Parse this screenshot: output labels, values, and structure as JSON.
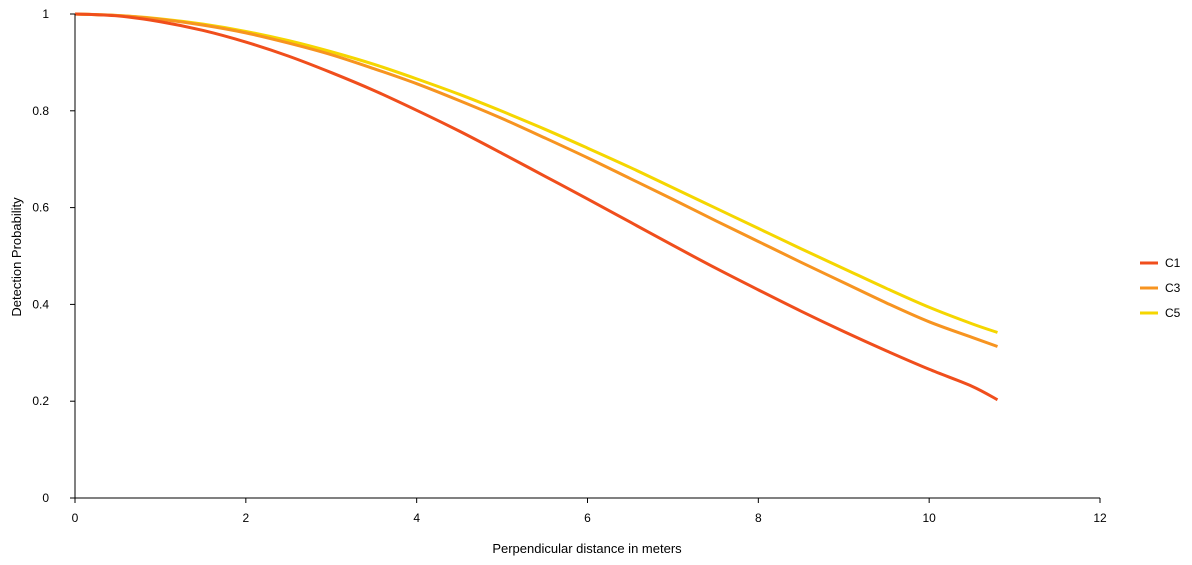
{
  "chart_data": {
    "type": "line",
    "title": "",
    "xlabel": "Perpendicular distance in meters",
    "ylabel": "Detection Probability",
    "xlim": [
      0,
      12
    ],
    "ylim": [
      0,
      1
    ],
    "x_ticks": [
      0,
      2,
      4,
      6,
      8,
      10,
      12
    ],
    "y_ticks": [
      0,
      0.2,
      0.4,
      0.6,
      0.8,
      1
    ],
    "x_tick_labels": [
      "0",
      "2",
      "4",
      "6",
      "8",
      "10",
      "12"
    ],
    "y_tick_labels": [
      "0",
      "0.2",
      "0.4",
      "0.6",
      "0.8",
      "1"
    ],
    "grid": false,
    "legend_position": "right",
    "x": [
      0,
      0.5,
      1,
      1.5,
      2,
      2.5,
      3,
      3.5,
      4,
      4.5,
      5,
      5.5,
      6,
      6.5,
      7,
      7.5,
      8,
      8.5,
      9,
      9.5,
      10,
      10.5,
      10.8
    ],
    "series": [
      {
        "name": "C1",
        "color": "#f04e1c",
        "values": [
          1.0,
          0.996,
          0.984,
          0.966,
          0.942,
          0.913,
          0.879,
          0.842,
          0.801,
          0.758,
          0.712,
          0.665,
          0.618,
          0.57,
          0.522,
          0.475,
          0.43,
          0.386,
          0.344,
          0.304,
          0.266,
          0.231,
          0.203
        ]
      },
      {
        "name": "C3",
        "color": "#f79420",
        "values": [
          1.0,
          0.997,
          0.989,
          0.977,
          0.961,
          0.94,
          0.916,
          0.887,
          0.856,
          0.821,
          0.784,
          0.744,
          0.703,
          0.66,
          0.617,
          0.573,
          0.53,
          0.487,
          0.445,
          0.403,
          0.364,
          0.332,
          0.313
        ]
      },
      {
        "name": "C5",
        "color": "#f5d600",
        "values": [
          1.0,
          0.997,
          0.99,
          0.979,
          0.964,
          0.945,
          0.922,
          0.896,
          0.866,
          0.834,
          0.799,
          0.762,
          0.723,
          0.683,
          0.641,
          0.599,
          0.557,
          0.515,
          0.474,
          0.433,
          0.394,
          0.36,
          0.342
        ]
      }
    ]
  }
}
